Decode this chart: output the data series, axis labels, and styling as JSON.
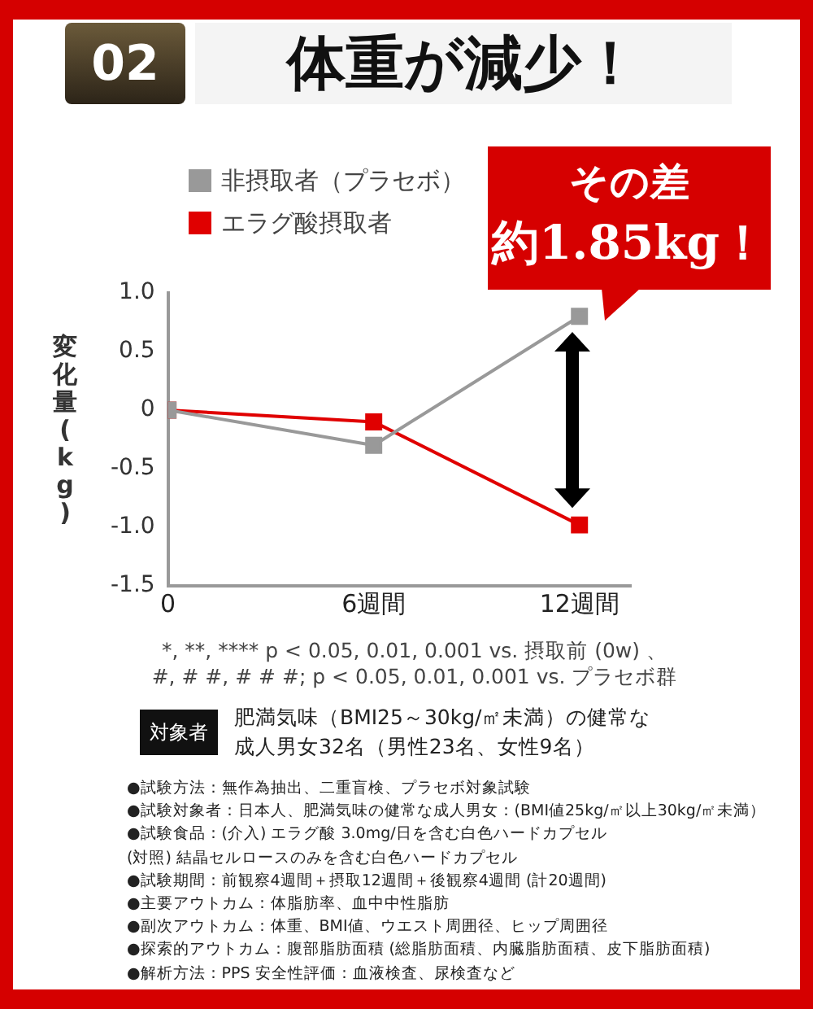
{
  "chart_data": {
    "type": "line",
    "title": "体重が減少！",
    "ylabel": "変化量(kg)",
    "x": [
      0,
      6,
      12
    ],
    "xlim": [
      0,
      13.5
    ],
    "xticks": [
      {
        "value": 0,
        "label": "0"
      },
      {
        "value": 6,
        "label": "6週間"
      },
      {
        "value": 12,
        "label": "12週間"
      }
    ],
    "ylim": [
      -1.5,
      1
    ],
    "yticks": [
      {
        "value": 1,
        "label": "1.0"
      },
      0.5,
      0,
      -0.5,
      {
        "value": -1,
        "label": "-1.0"
      },
      -1.5
    ],
    "series": [
      {
        "name": "非摂取者（プラセボ）",
        "color": "#999999",
        "values": [
          0,
          -0.3,
          0.8
        ]
      },
      {
        "name": "エラグ酸摂取者",
        "color": "#e00000",
        "values": [
          0,
          -0.1,
          -0.98
        ]
      }
    ],
    "marker": "square",
    "line_style": "solid",
    "grid": false,
    "legend": "top left",
    "annotations": [
      "02",
      "その差",
      "約1.85kg！",
      "*, **, **** p < 0.05, 0.01, 0.001 vs. 摂取前 (0w) 、",
      "#, # #, # # #; p < 0.05, 0.01, 0.001 vs. プラセボ群",
      "対象者",
      "肥満気味（BMI25～30kg/㎡未満）の健常な",
      "成人男女32名（男性23名、女性9名）",
      "●試験方法：無作為抽出、二重盲検、プラセボ対象試験",
      "●試験対象者：日本人、肥満気味の健常な成人男女：(BMI値25kg/㎡以上30kg/㎡未満）",
      "●試験食品：(介入) エラグ酸 3.0mg/日を含む白色ハードカプセル",
      "(対照) 結晶セルロースのみを含む白色ハードカプセル",
      "●試験期間：前観察4週間＋摂取12週間＋後観察4週間 (計20週間)",
      "●主要アウトカム：体脂肪率、血中中性脂肪",
      "●副次アウトカム：体重、BMI値、ウエスト周囲径、ヒップ周囲径",
      "●探索的アウトカム：腹部脂肪面積 (総脂肪面積、内臓脂肪面積、皮下脂肪面積)",
      "●解析方法：PPS 安全性評価：血液検査、尿検査など"
    ]
  }
}
